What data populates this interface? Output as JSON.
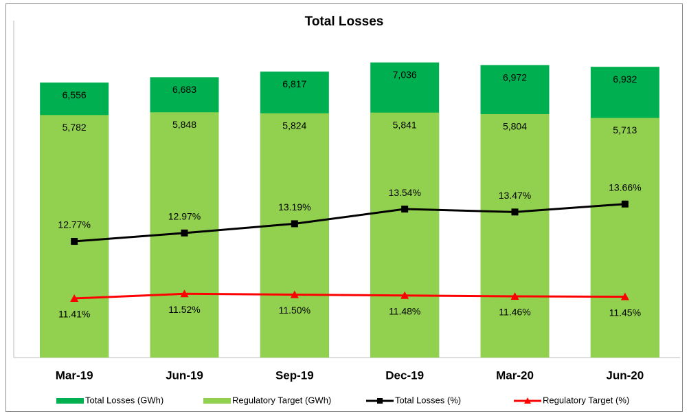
{
  "chart_data": {
    "type": "bar-line",
    "title": "Total Losses",
    "categories": [
      "Mar-19",
      "Jun-19",
      "Sep-19",
      "Dec-19",
      "Mar-20",
      "Jun-20"
    ],
    "ylim": [
      0,
      8000
    ],
    "y2lim": [
      10,
      18
    ],
    "series": [
      {
        "name": "Total Losses (GWh)",
        "type": "bar",
        "color": "#00b050",
        "values": [
          6556,
          6683,
          6817,
          7036,
          6972,
          6932
        ],
        "value_labels": [
          "6,556",
          "6,683",
          "6,817",
          "7,036",
          "6,972",
          "6,932"
        ]
      },
      {
        "name": "Regulatory Target (GWh)",
        "type": "bar",
        "color": "#92d050",
        "values": [
          5782,
          5848,
          5824,
          5841,
          5804,
          5713
        ],
        "value_labels": [
          "5,782",
          "5,848",
          "5,824",
          "5,841",
          "5,804",
          "5,713"
        ]
      },
      {
        "name": "Total Losses (%)",
        "type": "line",
        "axis": "y2",
        "marker": "square",
        "color": "#000000",
        "values": [
          12.77,
          12.97,
          13.19,
          13.54,
          13.47,
          13.66
        ],
        "value_labels": [
          "12.77%",
          "12.97%",
          "13.19%",
          "13.54%",
          "13.47%",
          "13.66%"
        ]
      },
      {
        "name": "Regulatory Target (%)",
        "type": "line",
        "axis": "y2",
        "marker": "triangle",
        "color": "#ff0000",
        "values": [
          11.41,
          11.52,
          11.5,
          11.48,
          11.46,
          11.45
        ],
        "value_labels": [
          "11.41%",
          "11.52%",
          "11.50%",
          "11.48%",
          "11.46%",
          "11.45%"
        ]
      }
    ]
  }
}
